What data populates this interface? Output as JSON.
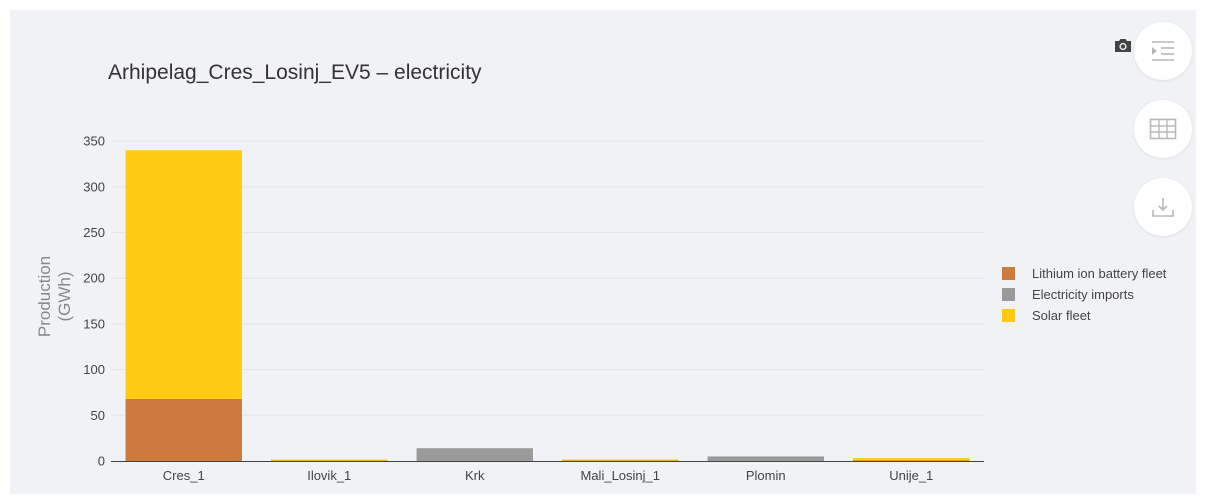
{
  "toolbar": {
    "camera_icon": "camera-icon",
    "indent_icon": "indent-icon",
    "table_icon": "table-icon",
    "download_icon": "download-icon"
  },
  "colors": {
    "background": "#f1f2f5",
    "battery": "#cc7b3f",
    "imports": "#9a9a9a",
    "solar": "#fecb12"
  },
  "chart_data": {
    "type": "bar",
    "stacked": true,
    "title": "Arhipelag_Cres_Losinj_EV5 – electricity",
    "xlabel": "",
    "ylabel": "Production\n(GWh)",
    "ylim": [
      0,
      360
    ],
    "yticks": [
      0,
      50,
      100,
      150,
      200,
      250,
      300,
      350
    ],
    "grid": true,
    "legend_position": "right",
    "categories": [
      "Cres_1",
      "Ilovik_1",
      "Krk",
      "Mali_Losinj_1",
      "Plomin",
      "Unije_1"
    ],
    "series": [
      {
        "name": "Lithium ion battery fleet",
        "color": "#cc7b3f",
        "values": [
          68,
          0.3,
          0,
          0.4,
          0,
          0.6
        ]
      },
      {
        "name": "Electricity imports",
        "color": "#9a9a9a",
        "values": [
          0,
          0,
          14,
          0,
          5,
          0
        ]
      },
      {
        "name": "Solar fleet",
        "color": "#fecb12",
        "values": [
          272,
          0.7,
          0,
          0.6,
          0,
          2.6
        ]
      }
    ]
  }
}
